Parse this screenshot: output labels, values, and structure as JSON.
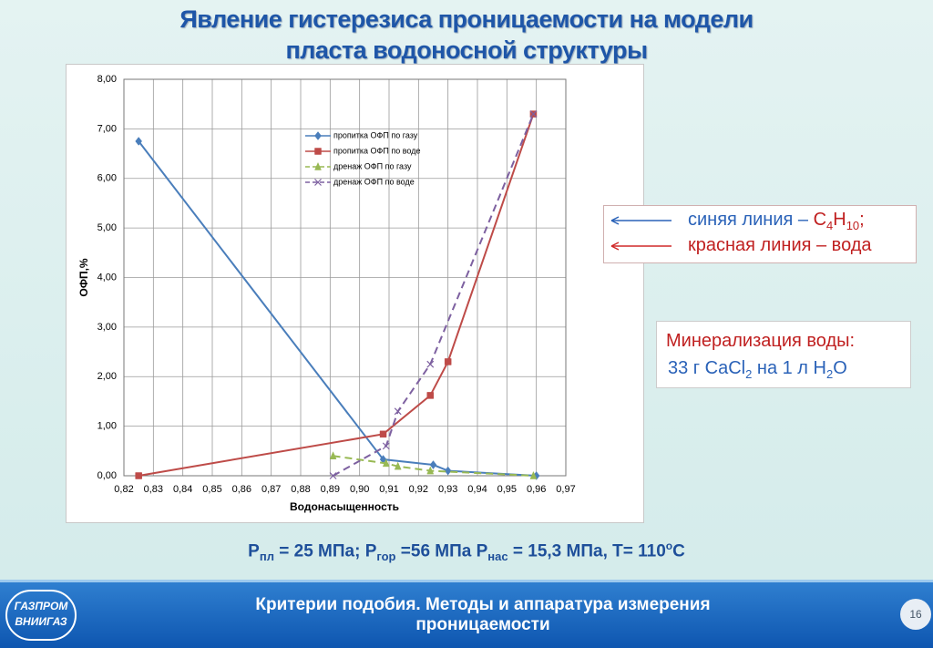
{
  "title": [
    "Явление гистерезиса проницаемости на модели",
    "пласта водоносной структуры"
  ],
  "chart_data": {
    "type": "line",
    "x_label": "Водонасыщенность",
    "y_label": "ОФП,%",
    "xlim": [
      0.82,
      0.97
    ],
    "xticks": [
      {
        "value": 0.82,
        "label": "0,82"
      },
      {
        "value": 0.83,
        "label": "0,83"
      },
      {
        "value": 0.84,
        "label": "0,84"
      },
      {
        "value": 0.85,
        "label": "0,85"
      },
      {
        "value": 0.86,
        "label": "0,86"
      },
      {
        "value": 0.87,
        "label": "0,87"
      },
      {
        "value": 0.88,
        "label": "0,88"
      },
      {
        "value": 0.89,
        "label": "0,89"
      },
      {
        "value": 0.9,
        "label": "0,90"
      },
      {
        "value": 0.91,
        "label": "0,91"
      },
      {
        "value": 0.92,
        "label": "0,92"
      },
      {
        "value": 0.93,
        "label": "0,93"
      },
      {
        "value": 0.94,
        "label": "0,94"
      },
      {
        "value": 0.95,
        "label": "0,95"
      },
      {
        "value": 0.96,
        "label": "0,96"
      },
      {
        "value": 0.97,
        "label": "0,97"
      }
    ],
    "ylim": [
      0,
      8
    ],
    "yticks": [
      {
        "value": 0,
        "label": "0,00"
      },
      {
        "value": 1,
        "label": "1,00"
      },
      {
        "value": 2,
        "label": "2,00"
      },
      {
        "value": 3,
        "label": "3,00"
      },
      {
        "value": 4,
        "label": "4,00"
      },
      {
        "value": 5,
        "label": "5,00"
      },
      {
        "value": 6,
        "label": "6,00"
      },
      {
        "value": 7,
        "label": "7,00"
      },
      {
        "value": 8,
        "label": "8,00"
      }
    ],
    "grid": true,
    "series": [
      {
        "name": "пропитка ОФП по газу",
        "color": "#4a7ebb",
        "marker": "diamond",
        "line_style": "solid",
        "x": [
          0.825,
          0.908,
          0.925,
          0.93,
          0.96
        ],
        "values": [
          6.75,
          0.33,
          0.22,
          0.1,
          0.0
        ]
      },
      {
        "name": "пропитка ОФП по воде",
        "color": "#be4b48",
        "marker": "square",
        "line_style": "solid",
        "x": [
          0.825,
          0.908,
          0.924,
          0.93,
          0.959
        ],
        "values": [
          0.0,
          0.84,
          1.62,
          2.3,
          7.3
        ]
      },
      {
        "name": "дренаж ОФП по газу",
        "color": "#98b954",
        "marker": "triangle",
        "line_style": "dashed",
        "x": [
          0.891,
          0.909,
          0.913,
          0.924,
          0.959
        ],
        "values": [
          0.4,
          0.25,
          0.19,
          0.1,
          0.0
        ]
      },
      {
        "name": "дренаж ОФП по воде",
        "color": "#7d60a0",
        "marker": "cross",
        "line_style": "dashed",
        "x": [
          0.891,
          0.909,
          0.913,
          0.924,
          0.959
        ],
        "values": [
          0.0,
          0.6,
          1.3,
          2.25,
          7.3
        ]
      }
    ]
  },
  "note": {
    "blue_line": [
      "синяя линия – ",
      "C",
      "4",
      "H",
      "10",
      ";"
    ],
    "red_line": [
      "красная линия – вода"
    ]
  },
  "mineral": {
    "heading": "Минерализация воды:",
    "body": [
      "33 г CaCl",
      "2",
      " на 1 л  H",
      "2",
      "O"
    ]
  },
  "params": [
    "P",
    "пл",
    " = 25 МПа; P",
    "гор",
    " =56 МПа  P",
    "нас",
    " = 15,3 МПа, T= 110",
    "o",
    "С"
  ],
  "footer": {
    "text": [
      "Критерии подобия. Методы и аппаратура измерения",
      "проницаемости"
    ],
    "page": "16",
    "logo": [
      "ГАЗПРОМ",
      "ВНИИГАЗ"
    ]
  }
}
